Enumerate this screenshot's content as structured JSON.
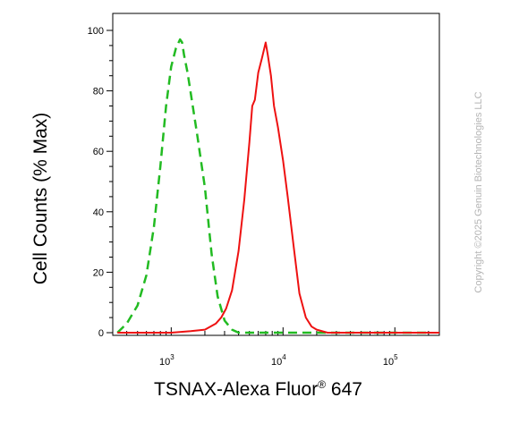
{
  "chart_data": {
    "type": "line",
    "x_scale": "log",
    "xlim": [
      300,
      250000
    ],
    "ylim": [
      0,
      100
    ],
    "y_ticks": [
      0,
      20,
      40,
      60,
      80,
      100
    ],
    "x_ticks": [
      {
        "value": 1000,
        "base": "10",
        "exp": "3"
      },
      {
        "value": 10000,
        "base": "10",
        "exp": "4"
      },
      {
        "value": 100000,
        "base": "10",
        "exp": "5"
      }
    ],
    "ylabel": "Cell Counts (% Max)",
    "xlabel_main": "TSNAX-Alexa Fluor",
    "xlabel_reg": "®",
    "xlabel_tail": " 647",
    "grid": false,
    "legend": "none",
    "series": [
      {
        "color": "#22bb22",
        "style": "dashed",
        "x": [
          330,
          400,
          500,
          600,
          700,
          800,
          900,
          1000,
          1100,
          1200,
          1250,
          1300,
          1400,
          1500,
          1700,
          2000,
          2300,
          2600,
          3000,
          3500,
          4000,
          5000,
          7000,
          10000,
          20000,
          50000,
          200000
        ],
        "y": [
          0,
          3,
          9,
          19,
          35,
          55,
          75,
          88,
          94,
          97,
          96,
          92,
          86,
          79,
          66,
          48,
          26,
          12,
          4,
          1,
          0,
          0,
          0,
          0,
          0,
          0,
          0
        ]
      },
      {
        "color": "#ee1111",
        "style": "solid",
        "x": [
          330,
          1000,
          1500,
          2000,
          2500,
          2800,
          3100,
          3500,
          4000,
          4500,
          5000,
          5300,
          5600,
          6000,
          6500,
          7000,
          7300,
          7800,
          8300,
          9000,
          10000,
          11000,
          12500,
          14000,
          16000,
          18000,
          20000,
          25000,
          35000,
          50000,
          100000,
          250000
        ],
        "y": [
          0,
          0,
          0.5,
          1,
          3,
          5,
          8,
          14,
          27,
          44,
          63,
          75,
          77,
          86,
          91,
          96,
          92,
          85,
          75,
          68,
          57,
          45,
          28,
          13,
          5,
          2,
          1,
          0,
          0,
          0,
          0,
          0
        ]
      }
    ]
  },
  "watermark": "Copyright ©2025 Genuin Biotechnologies LLC"
}
